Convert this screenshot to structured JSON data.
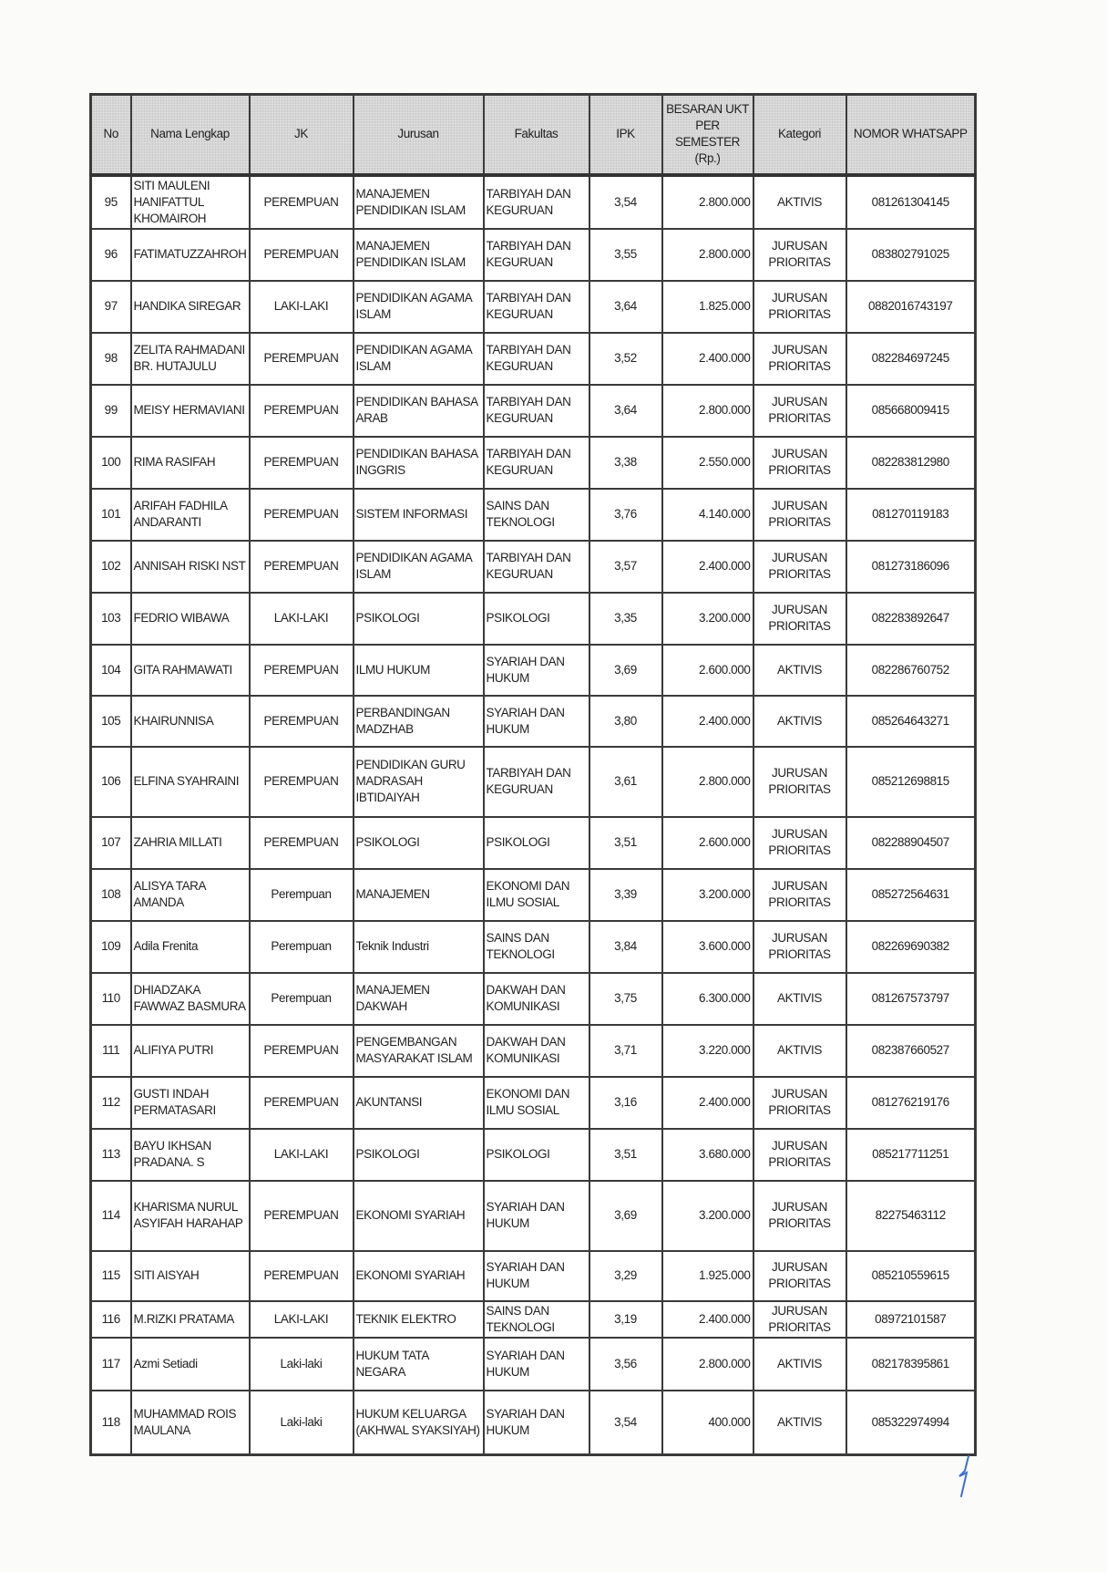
{
  "table": {
    "headers": [
      "No",
      "Nama Lengkap",
      "JK",
      "Jurusan",
      "Fakultas",
      "IPK",
      "BESARAN UKT PER SEMESTER (Rp.)",
      "Kategori",
      "NOMOR WHATSAPP"
    ],
    "rows": [
      [
        "95",
        "SITI MAULENI HANIFATTUL KHOMAIROH",
        "PEREMPUAN",
        "MANAJEMEN PENDIDIKAN ISLAM",
        "TARBIYAH DAN KEGURUAN",
        "3,54",
        "2.800.000",
        "AKTIVIS",
        "081261304145"
      ],
      [
        "96",
        "FATIMATUZZAHROH",
        "PEREMPUAN",
        "MANAJEMEN PENDIDIKAN ISLAM",
        "TARBIYAH DAN KEGURUAN",
        "3,55",
        "2.800.000",
        "JURUSAN PRIORITAS",
        "083802791025"
      ],
      [
        "97",
        "HANDIKA SIREGAR",
        "LAKI-LAKI",
        "PENDIDIKAN AGAMA ISLAM",
        "TARBIYAH DAN KEGURUAN",
        "3,64",
        "1.825.000",
        "JURUSAN PRIORITAS",
        "0882016743197"
      ],
      [
        "98",
        "ZELITA RAHMADANI BR. HUTAJULU",
        "PEREMPUAN",
        "PENDIDIKAN AGAMA ISLAM",
        "TARBIYAH DAN KEGURUAN",
        "3,52",
        "2.400.000",
        "JURUSAN PRIORITAS",
        "082284697245"
      ],
      [
        "99",
        "MEISY HERMAVIANI",
        "PEREMPUAN",
        "PENDIDIKAN BAHASA ARAB",
        "TARBIYAH DAN KEGURUAN",
        "3,64",
        "2.800.000",
        "JURUSAN PRIORITAS",
        "085668009415"
      ],
      [
        "100",
        "RIMA RASIFAH",
        "PEREMPUAN",
        "PENDIDIKAN BAHASA INGGRIS",
        "TARBIYAH DAN KEGURUAN",
        "3,38",
        "2.550.000",
        "JURUSAN PRIORITAS",
        "082283812980"
      ],
      [
        "101",
        "ARIFAH FADHILA ANDARANTI",
        "PEREMPUAN",
        "SISTEM INFORMASI",
        "SAINS DAN TEKNOLOGI",
        "3,76",
        "4.140.000",
        "JURUSAN PRIORITAS",
        "081270119183"
      ],
      [
        "102",
        "ANNISAH RISKI NST",
        "PEREMPUAN",
        "PENDIDIKAN AGAMA ISLAM",
        "TARBIYAH DAN KEGURUAN",
        "3,57",
        "2.400.000",
        "JURUSAN PRIORITAS",
        "081273186096"
      ],
      [
        "103",
        "FEDRIO WIBAWA",
        "LAKI-LAKI",
        "PSIKOLOGI",
        "PSIKOLOGI",
        "3,35",
        "3.200.000",
        "JURUSAN PRIORITAS",
        "082283892647"
      ],
      [
        "104",
        "GITA RAHMAWATI",
        "PEREMPUAN",
        "ILMU HUKUM",
        "SYARIAH DAN HUKUM",
        "3,69",
        "2.600.000",
        "AKTIVIS",
        "082286760752"
      ],
      [
        "105",
        "KHAIRUNNISA",
        "PEREMPUAN",
        "PERBANDINGAN MADZHAB",
        "SYARIAH DAN HUKUM",
        "3,80",
        "2.400.000",
        "AKTIVIS",
        "085264643271"
      ],
      [
        "106",
        "ELFINA SYAHRAINI",
        "PEREMPUAN",
        "PENDIDIKAN GURU MADRASAH IBTIDAIYAH",
        "TARBIYAH DAN KEGURUAN",
        "3,61",
        "2.800.000",
        "JURUSAN PRIORITAS",
        "085212698815"
      ],
      [
        "107",
        "ZAHRIA MILLATI",
        "PEREMPUAN",
        "PSIKOLOGI",
        "PSIKOLOGI",
        "3,51",
        "2.600.000",
        "JURUSAN PRIORITAS",
        "082288904507"
      ],
      [
        "108",
        "ALISYA TARA AMANDA",
        "Perempuan",
        "MANAJEMEN",
        "EKONOMI DAN ILMU SOSIAL",
        "3,39",
        "3.200.000",
        "JURUSAN PRIORITAS",
        "085272564631"
      ],
      [
        "109",
        "Adila Frenita",
        "Perempuan",
        "Teknik Industri",
        "SAINS DAN TEKNOLOGI",
        "3,84",
        "3.600.000",
        "JURUSAN PRIORITAS",
        "082269690382"
      ],
      [
        "110",
        "DHIADZAKA FAWWAZ BASMURA",
        "Perempuan",
        "MANAJEMEN DAKWAH",
        "DAKWAH DAN KOMUNIKASI",
        "3,75",
        "6.300.000",
        "AKTIVIS",
        "081267573797"
      ],
      [
        "111",
        "ALIFIYA PUTRI",
        "PEREMPUAN",
        "PENGEMBANGAN MASYARAKAT ISLAM",
        "DAKWAH DAN KOMUNIKASI",
        "3,71",
        "3.220.000",
        "AKTIVIS",
        "082387660527"
      ],
      [
        "112",
        "GUSTI INDAH PERMATASARI",
        "PEREMPUAN",
        "AKUNTANSI",
        "EKONOMI DAN ILMU SOSIAL",
        "3,16",
        "2.400.000",
        "JURUSAN PRIORITAS",
        "081276219176"
      ],
      [
        "113",
        "BAYU IKHSAN PRADANA. S",
        "LAKI-LAKI",
        "PSIKOLOGI",
        "PSIKOLOGI",
        "3,51",
        "3.680.000",
        "JURUSAN PRIORITAS",
        "085217711251"
      ],
      [
        "114",
        "KHARISMA NURUL ASYIFAH HARAHAP",
        "PEREMPUAN",
        "EKONOMI SYARIAH",
        "SYARIAH DAN HUKUM",
        "3,69",
        "3.200.000",
        "JURUSAN PRIORITAS",
        "82275463112"
      ],
      [
        "115",
        "SITI AISYAH",
        "PEREMPUAN",
        "EKONOMI SYARIAH",
        "SYARIAH DAN HUKUM",
        "3,29",
        "1.925.000",
        "JURUSAN PRIORITAS",
        "085210559615"
      ],
      [
        "116",
        "M.RIZKI PRATAMA",
        "LAKI-LAKI",
        "TEKNIK ELEKTRO",
        "SAINS DAN TEKNOLOGI",
        "3,19",
        "2.400.000",
        "JURUSAN PRIORITAS",
        "08972101587"
      ],
      [
        "117",
        "Azmi Setiadi",
        "Laki-laki",
        "HUKUM TATA NEGARA",
        "SYARIAH DAN HUKUM",
        "3,56",
        "2.800.000",
        "AKTIVIS",
        "082178395861"
      ],
      [
        "118",
        "MUHAMMAD ROIS MAULANA",
        "Laki-laki",
        "HUKUM KELUARGA (AKHWAL SYAKSIYAH)",
        "SYARIAH DAN HUKUM",
        "3,54",
        "400.000",
        "AKTIVIS",
        "085322974994"
      ]
    ]
  },
  "signature": {
    "ink_color": "#3a6fd8"
  }
}
